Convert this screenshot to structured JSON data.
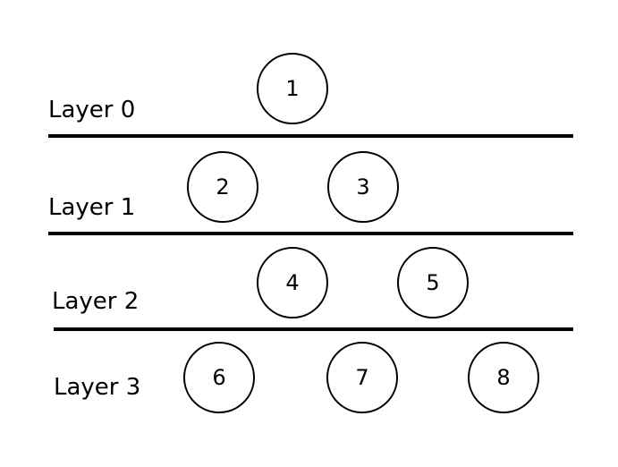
{
  "diagram": {
    "layers": [
      {
        "label": "Layer 0",
        "nodes": [
          "1"
        ]
      },
      {
        "label": "Layer 1",
        "nodes": [
          "2",
          "3"
        ]
      },
      {
        "label": "Layer 2",
        "nodes": [
          "4",
          "5"
        ]
      },
      {
        "label": "Layer 3",
        "nodes": [
          "6",
          "7",
          "8"
        ]
      }
    ],
    "colors": {
      "stroke": "#000000",
      "fill": "#ffffff",
      "text": "#000000"
    }
  }
}
